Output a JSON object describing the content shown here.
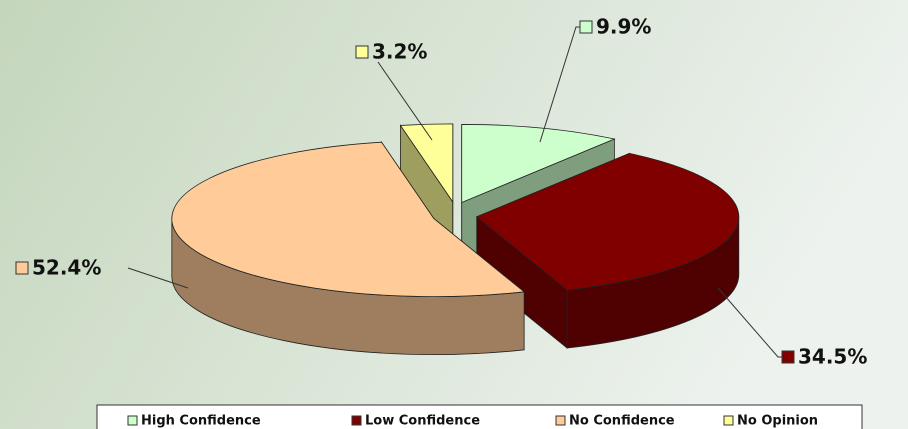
{
  "chart_data": {
    "type": "pie3d",
    "categories": [
      "High Confidence",
      "Low Confidence",
      "No Confidence",
      "No Opinion"
    ],
    "values": [
      9.9,
      34.5,
      52.4,
      3.2
    ],
    "value_labels": [
      "9.9%",
      "34.5%",
      "52.4%",
      "3.2%"
    ],
    "colors": [
      "#ccffcc",
      "#800000",
      "#ffcc99",
      "#ffff99"
    ],
    "legend": "bottom"
  }
}
